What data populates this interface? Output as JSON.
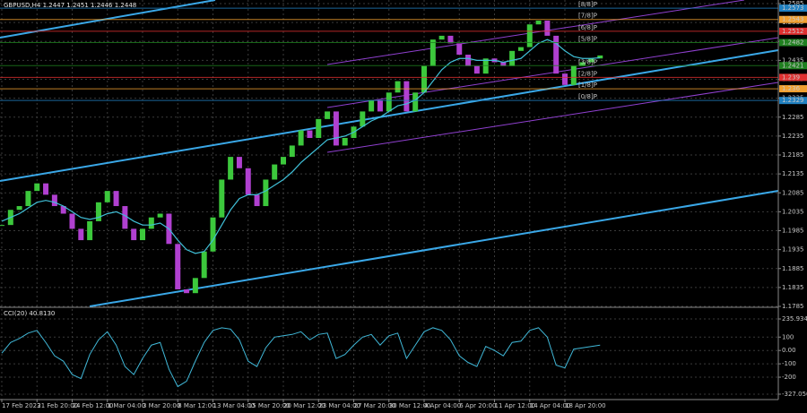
{
  "chart_data": [
    {
      "type": "candle",
      "title": "GBPUSD,H4  1.2447 1.2451 1.2446 1.2448",
      "categories": [
        "17 Feb 2023",
        null,
        null,
        null,
        "21 Feb 20:00",
        null,
        null,
        null,
        "24 Feb 12:00",
        null,
        null,
        null,
        "1 Mar 04:00",
        null,
        null,
        null,
        "3 Mar 20:00",
        null,
        null,
        null,
        "8 Mar 12:00",
        null,
        null,
        null,
        "13 Mar 04:00",
        null,
        null,
        null,
        "15 Mar 20:00",
        null,
        null,
        null,
        "20 Mar 12:00",
        null,
        null,
        null,
        "23 Mar 04:00",
        null,
        null,
        null,
        "27 Mar 20:00",
        null,
        null,
        null,
        "30 Mar 12:00",
        null,
        null,
        null,
        "4 Apr 04:00",
        null,
        null,
        null,
        "6 Apr 20:00",
        null,
        null,
        null,
        "11 Apr 12:00",
        null,
        null,
        null,
        "14 Apr 04:00",
        null,
        null,
        null,
        "18 Apr 20:00",
        null,
        null,
        null,
        null
      ],
      "series": [
        {
          "name": "GBPUSD",
          "up_color": "#3cc83c",
          "down_color": "#b040d0",
          "values": [
            1.2,
            1.204,
            1.205,
            1.209,
            1.211,
            1.208,
            1.205,
            1.203,
            1.199,
            1.196,
            1.201,
            1.206,
            1.209,
            1.205,
            1.199,
            1.196,
            1.199,
            1.202,
            1.203,
            1.195,
            1.183,
            1.182,
            1.186,
            1.193,
            1.202,
            1.212,
            1.218,
            1.215,
            1.208,
            1.205,
            1.212,
            1.216,
            1.218,
            1.221,
            1.225,
            1.223,
            1.228,
            1.23,
            1.221,
            1.223,
            1.226,
            1.23,
            1.233,
            1.23,
            1.235,
            1.238,
            1.23,
            1.235,
            1.242,
            1.249,
            1.25,
            1.248,
            1.245,
            1.242,
            1.24,
            1.244,
            1.243,
            1.242,
            1.246,
            1.247,
            1.253,
            1.254,
            1.25,
            1.24,
            1.237,
            1.242,
            1.243,
            1.244,
            1.2448
          ]
        },
        {
          "name": "MA",
          "color": "#40c0d8",
          "values": [
            1.201,
            1.202,
            1.203,
            1.2045,
            1.206,
            1.2065,
            1.206,
            1.205,
            1.2035,
            1.202,
            1.2015,
            1.202,
            1.203,
            1.2035,
            1.2025,
            1.201,
            1.2,
            1.2,
            1.2005,
            1.199,
            1.196,
            1.1935,
            1.1925,
            1.193,
            1.196,
            1.2,
            1.204,
            1.207,
            1.208,
            1.208,
            1.209,
            1.2105,
            1.212,
            1.214,
            1.2165,
            1.2185,
            1.2205,
            1.2225,
            1.223,
            1.2235,
            1.2245,
            1.226,
            1.2275,
            1.2285,
            1.23,
            1.2315,
            1.232,
            1.233,
            1.235,
            1.238,
            1.241,
            1.243,
            1.244,
            1.244,
            1.2435,
            1.2435,
            1.2435,
            1.243,
            1.2435,
            1.244,
            1.246,
            1.248,
            1.249,
            1.248,
            1.246,
            1.2445,
            1.244,
            1.244,
            1.2442
          ]
        }
      ],
      "ylim": [
        1.1785,
        1.2585
      ],
      "yticks": [
        1.1785,
        1.1835,
        1.1885,
        1.1935,
        1.1985,
        1.2035,
        1.2085,
        1.2135,
        1.2185,
        1.2235,
        1.2285,
        1.2335,
        1.2385,
        1.2435,
        1.2485,
        1.2535,
        1.2585
      ],
      "levels": [
        {
          "name": "[8/8]P",
          "value": 1.2573,
          "color": "#2080c0"
        },
        {
          "name": "[7/8]P",
          "value": 1.2543,
          "color": "#f0a030"
        },
        {
          "name": "[6/8]P",
          "value": 1.2512,
          "color": "#e03030"
        },
        {
          "name": "[5/8]P",
          "value": 1.2482,
          "color": "#208020"
        },
        {
          "name": "[3/8]P",
          "value": 1.2421,
          "color": "#208020"
        },
        {
          "name": "[2/8]P",
          "value": 1.239,
          "color": "#e03030"
        },
        {
          "name": "[1/8]P",
          "value": 1.236,
          "color": "#f0a030"
        },
        {
          "name": "[0/8]P",
          "value": 1.2329,
          "color": "#2080c0"
        }
      ],
      "grid": true
    },
    {
      "type": "line",
      "title": "CCI(20) 40.8130",
      "series": [
        {
          "name": "CCI",
          "color": "#40b8d8",
          "values": [
            -20,
            60,
            90,
            130,
            150,
            60,
            -40,
            -80,
            -180,
            -210,
            -30,
            80,
            140,
            40,
            -120,
            -180,
            -60,
            40,
            60,
            -140,
            -270,
            -230,
            -80,
            60,
            150,
            170,
            160,
            80,
            -80,
            -120,
            20,
            100,
            110,
            120,
            140,
            80,
            120,
            130,
            -60,
            -30,
            40,
            100,
            120,
            40,
            110,
            130,
            -60,
            40,
            140,
            170,
            150,
            80,
            -40,
            -90,
            -120,
            30,
            0,
            -40,
            60,
            70,
            150,
            170,
            100,
            -110,
            -130,
            10,
            20,
            30,
            40
          ]
        }
      ],
      "ylim": [
        -327.05,
        235.9348
      ],
      "yticks": [
        {
          "value": 235.9348,
          "label": "235.9348"
        },
        100,
        {
          "value": 0,
          "label": "0.00"
        },
        -100,
        -200,
        {
          "value": -327.05,
          "label": "-327.0500"
        }
      ],
      "grid": true
    }
  ]
}
